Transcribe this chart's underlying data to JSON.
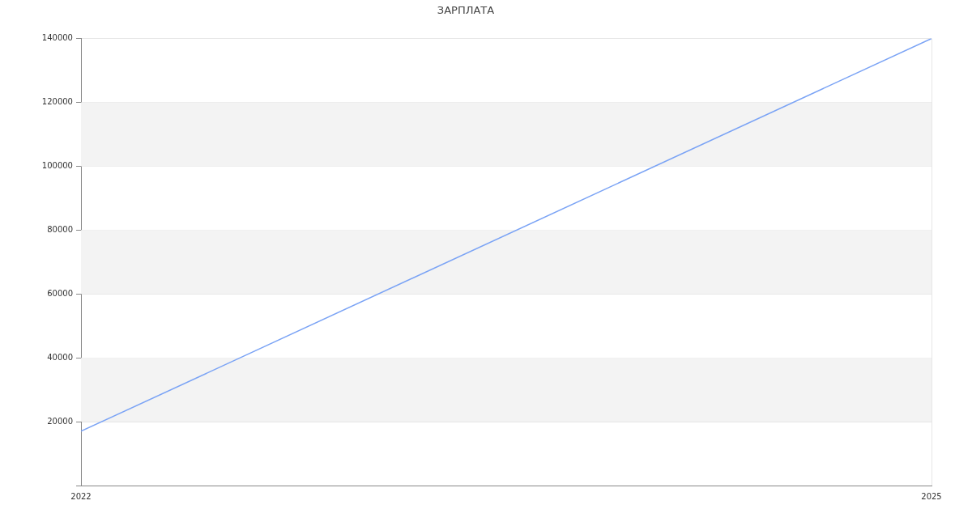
{
  "chart_data": {
    "type": "line",
    "title": "ЗАРПЛАТА",
    "x": [
      2022,
      2025
    ],
    "values": [
      17000,
      140000
    ],
    "color": "#7aa3f5",
    "xlim": [
      2022,
      2025
    ],
    "xticks": [
      2022,
      2025
    ],
    "ylim": [
      0,
      140000
    ],
    "yticks": [
      {
        "value": 0,
        "label": null
      },
      20000,
      40000,
      60000,
      80000,
      100000,
      120000,
      140000
    ],
    "grid": true,
    "marker": "none"
  }
}
